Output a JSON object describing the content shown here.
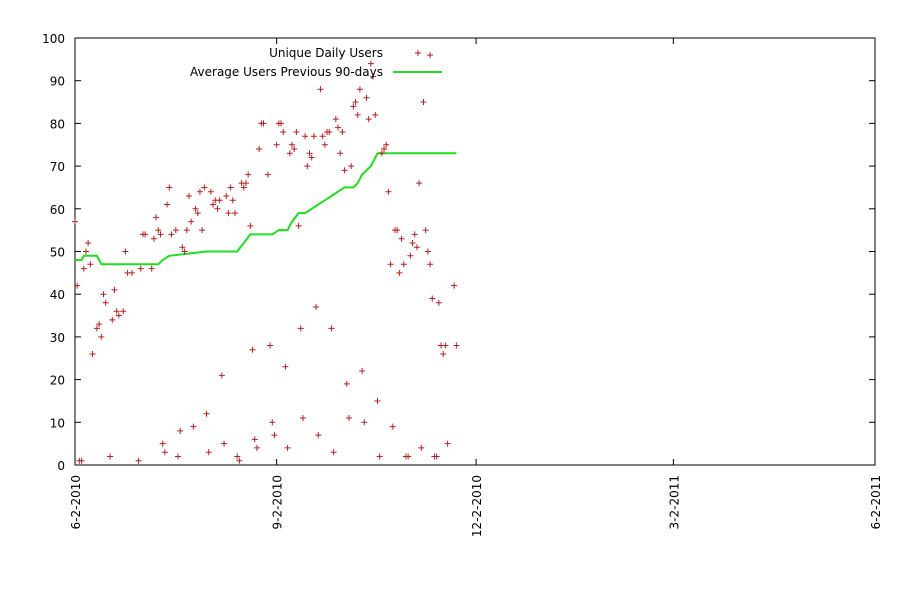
{
  "chart_data": {
    "type": "scatter",
    "title": "",
    "xlabel": "",
    "ylabel": "",
    "ylim": [
      0,
      100
    ],
    "xlim": [
      "2010-06-02",
      "2011-06-02"
    ],
    "x_ticks": [
      "6-2-2010",
      "9-2-2010",
      "12-2-2010",
      "3-2-2011",
      "6-2-2011"
    ],
    "y_ticks": [
      0,
      10,
      20,
      30,
      40,
      50,
      60,
      70,
      80,
      90,
      100
    ],
    "legend_position": "top-left",
    "grid": false,
    "colors": {
      "points": "#b22222",
      "line": "#22dd22",
      "axis": "#000000"
    },
    "series": [
      {
        "name": "Unique Daily Users",
        "kind": "points",
        "points": [
          [
            "2010-06-02",
            57
          ],
          [
            "2010-06-03",
            42
          ],
          [
            "2010-06-04",
            1
          ],
          [
            "2010-06-05",
            1
          ],
          [
            "2010-06-06",
            46
          ],
          [
            "2010-06-07",
            50
          ],
          [
            "2010-06-08",
            52
          ],
          [
            "2010-06-09",
            47
          ],
          [
            "2010-06-10",
            26
          ],
          [
            "2010-06-12",
            32
          ],
          [
            "2010-06-13",
            33
          ],
          [
            "2010-06-14",
            30
          ],
          [
            "2010-06-15",
            40
          ],
          [
            "2010-06-16",
            38
          ],
          [
            "2010-06-18",
            2
          ],
          [
            "2010-06-19",
            34
          ],
          [
            "2010-06-20",
            41
          ],
          [
            "2010-06-21",
            36
          ],
          [
            "2010-06-22",
            35
          ],
          [
            "2010-06-24",
            36
          ],
          [
            "2010-06-25",
            50
          ],
          [
            "2010-06-26",
            45
          ],
          [
            "2010-06-28",
            45
          ],
          [
            "2010-07-01",
            1
          ],
          [
            "2010-07-02",
            46
          ],
          [
            "2010-07-03",
            54
          ],
          [
            "2010-07-04",
            54
          ],
          [
            "2010-07-07",
            46
          ],
          [
            "2010-07-08",
            53
          ],
          [
            "2010-07-09",
            58
          ],
          [
            "2010-07-10",
            55
          ],
          [
            "2010-07-11",
            54
          ],
          [
            "2010-07-12",
            5
          ],
          [
            "2010-07-13",
            3
          ],
          [
            "2010-07-14",
            61
          ],
          [
            "2010-07-15",
            65
          ],
          [
            "2010-07-16",
            54
          ],
          [
            "2010-07-18",
            55
          ],
          [
            "2010-07-19",
            2
          ],
          [
            "2010-07-20",
            8
          ],
          [
            "2010-07-21",
            51
          ],
          [
            "2010-07-22",
            50
          ],
          [
            "2010-07-23",
            55
          ],
          [
            "2010-07-24",
            63
          ],
          [
            "2010-07-25",
            57
          ],
          [
            "2010-07-26",
            9
          ],
          [
            "2010-07-27",
            60
          ],
          [
            "2010-07-28",
            59
          ],
          [
            "2010-07-29",
            64
          ],
          [
            "2010-07-30",
            55
          ],
          [
            "2010-07-31",
            65
          ],
          [
            "2010-08-01",
            12
          ],
          [
            "2010-08-02",
            3
          ],
          [
            "2010-08-03",
            64
          ],
          [
            "2010-08-04",
            61
          ],
          [
            "2010-08-05",
            62
          ],
          [
            "2010-08-06",
            60
          ],
          [
            "2010-08-07",
            62
          ],
          [
            "2010-08-08",
            21
          ],
          [
            "2010-08-09",
            5
          ],
          [
            "2010-08-10",
            63
          ],
          [
            "2010-08-11",
            59
          ],
          [
            "2010-08-12",
            65
          ],
          [
            "2010-08-13",
            62
          ],
          [
            "2010-08-14",
            59
          ],
          [
            "2010-08-15",
            2
          ],
          [
            "2010-08-16",
            1
          ],
          [
            "2010-08-17",
            66
          ],
          [
            "2010-08-18",
            65
          ],
          [
            "2010-08-19",
            66
          ],
          [
            "2010-08-20",
            68
          ],
          [
            "2010-08-21",
            56
          ],
          [
            "2010-08-22",
            27
          ],
          [
            "2010-08-23",
            6
          ],
          [
            "2010-08-24",
            4
          ],
          [
            "2010-08-25",
            74
          ],
          [
            "2010-08-26",
            80
          ],
          [
            "2010-08-27",
            80
          ],
          [
            "2010-08-29",
            68
          ],
          [
            "2010-08-30",
            28
          ],
          [
            "2010-08-31",
            10
          ],
          [
            "2010-09-01",
            7
          ],
          [
            "2010-09-02",
            75
          ],
          [
            "2010-09-03",
            80
          ],
          [
            "2010-09-04",
            80
          ],
          [
            "2010-09-05",
            78
          ],
          [
            "2010-09-06",
            23
          ],
          [
            "2010-09-07",
            4
          ],
          [
            "2010-09-08",
            73
          ],
          [
            "2010-09-09",
            75
          ],
          [
            "2010-09-10",
            74
          ],
          [
            "2010-09-11",
            78
          ],
          [
            "2010-09-12",
            56
          ],
          [
            "2010-09-13",
            32
          ],
          [
            "2010-09-14",
            11
          ],
          [
            "2010-09-15",
            77
          ],
          [
            "2010-09-16",
            70
          ],
          [
            "2010-09-17",
            73
          ],
          [
            "2010-09-18",
            72
          ],
          [
            "2010-09-19",
            77
          ],
          [
            "2010-09-20",
            37
          ],
          [
            "2010-09-21",
            7
          ],
          [
            "2010-09-22",
            88
          ],
          [
            "2010-09-23",
            77
          ],
          [
            "2010-09-24",
            75
          ],
          [
            "2010-09-25",
            78
          ],
          [
            "2010-09-26",
            78
          ],
          [
            "2010-09-27",
            32
          ],
          [
            "2010-09-28",
            3
          ],
          [
            "2010-09-29",
            81
          ],
          [
            "2010-09-30",
            79
          ],
          [
            "2010-10-01",
            73
          ],
          [
            "2010-10-02",
            78
          ],
          [
            "2010-10-03",
            69
          ],
          [
            "2010-10-04",
            19
          ],
          [
            "2010-10-05",
            11
          ],
          [
            "2010-10-06",
            70
          ],
          [
            "2010-10-07",
            84
          ],
          [
            "2010-10-08",
            85
          ],
          [
            "2010-10-09",
            82
          ],
          [
            "2010-10-10",
            88
          ],
          [
            "2010-10-11",
            22
          ],
          [
            "2010-10-12",
            10
          ],
          [
            "2010-10-13",
            86
          ],
          [
            "2010-10-14",
            81
          ],
          [
            "2010-10-15",
            94
          ],
          [
            "2010-10-16",
            91
          ],
          [
            "2010-10-17",
            82
          ],
          [
            "2010-10-18",
            15
          ],
          [
            "2010-10-19",
            2
          ],
          [
            "2010-10-20",
            73
          ],
          [
            "2010-10-21",
            74
          ],
          [
            "2010-10-22",
            75
          ],
          [
            "2010-10-23",
            64
          ],
          [
            "2010-10-24",
            47
          ],
          [
            "2010-10-25",
            9
          ],
          [
            "2010-10-26",
            55
          ],
          [
            "2010-10-27",
            55
          ],
          [
            "2010-10-28",
            45
          ],
          [
            "2010-10-29",
            53
          ],
          [
            "2010-10-30",
            47
          ],
          [
            "2010-10-31",
            2
          ],
          [
            "2010-11-01",
            2
          ],
          [
            "2010-11-02",
            49
          ],
          [
            "2010-11-03",
            52
          ],
          [
            "2010-11-04",
            54
          ],
          [
            "2010-11-05",
            51
          ],
          [
            "2010-11-06",
            66
          ],
          [
            "2010-11-07",
            4
          ],
          [
            "2010-11-08",
            85
          ],
          [
            "2010-11-09",
            55
          ],
          [
            "2010-11-10",
            50
          ],
          [
            "2010-11-11",
            47
          ],
          [
            "2010-11-12",
            39
          ],
          [
            "2010-11-13",
            2
          ],
          [
            "2010-11-14",
            2
          ],
          [
            "2010-11-15",
            38
          ],
          [
            "2010-11-16",
            28
          ],
          [
            "2010-11-17",
            26
          ],
          [
            "2010-11-18",
            28
          ],
          [
            "2010-11-19",
            5
          ],
          [
            "2010-11-22",
            42
          ],
          [
            "2010-11-23",
            28
          ],
          [
            "2010-11-11",
            96
          ]
        ]
      },
      {
        "name": "Average Users Previous 90-days",
        "kind": "line",
        "points": [
          [
            "2010-06-02",
            48
          ],
          [
            "2010-06-05",
            48
          ],
          [
            "2010-06-06",
            49
          ],
          [
            "2010-06-12",
            49
          ],
          [
            "2010-06-14",
            47
          ],
          [
            "2010-07-10",
            47
          ],
          [
            "2010-07-12",
            48
          ],
          [
            "2010-07-15",
            49
          ],
          [
            "2010-08-01",
            50
          ],
          [
            "2010-08-15",
            50
          ],
          [
            "2010-08-18",
            52
          ],
          [
            "2010-08-21",
            54
          ],
          [
            "2010-08-31",
            54
          ],
          [
            "2010-09-03",
            55
          ],
          [
            "2010-09-07",
            55
          ],
          [
            "2010-09-09",
            57
          ],
          [
            "2010-09-12",
            59
          ],
          [
            "2010-09-15",
            59
          ],
          [
            "2010-09-18",
            60
          ],
          [
            "2010-09-21",
            61
          ],
          [
            "2010-09-24",
            62
          ],
          [
            "2010-09-27",
            63
          ],
          [
            "2010-09-30",
            64
          ],
          [
            "2010-10-03",
            65
          ],
          [
            "2010-10-07",
            65
          ],
          [
            "2010-10-09",
            66
          ],
          [
            "2010-10-11",
            68
          ],
          [
            "2010-10-13",
            69
          ],
          [
            "2010-10-15",
            70
          ],
          [
            "2010-10-16",
            71
          ],
          [
            "2010-10-17",
            72
          ],
          [
            "2010-10-18",
            73
          ],
          [
            "2010-10-21",
            73
          ],
          [
            "2010-11-23",
            73
          ]
        ]
      }
    ]
  }
}
